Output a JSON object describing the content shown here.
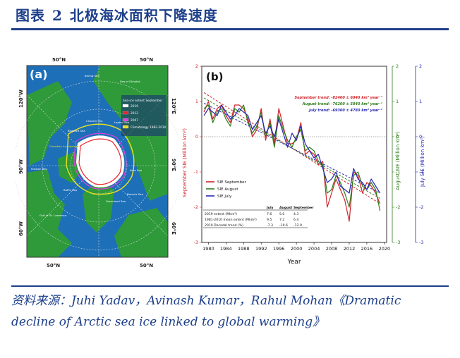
{
  "header": {
    "title_prefix": "图表",
    "title_number": "2",
    "title_text": "北极海冰面积下降速度"
  },
  "source": {
    "label": "资料来源：",
    "text": "Juhi Yadav，Avinash Kumar，Rahul Mohan《Dramatic decline of Arctic sea ice linked to global warming》"
  },
  "map": {
    "panel_label": "(a)",
    "legend_title": "Sea-ice extent September",
    "legend": [
      {
        "label": "2019",
        "color": "#ffffff"
      },
      {
        "label": "2012",
        "color": "#e8202a"
      },
      {
        "label": "2007",
        "color": "#e040e0"
      },
      {
        "label": "Climatology 1982-2010",
        "color": "#e8e020"
      }
    ],
    "lat_labels": [
      "50°N",
      "50°N",
      "50°N",
      "50°N"
    ],
    "lon_labels": [
      "120°W",
      "90°W",
      "60°W",
      "120°E",
      "90°E",
      "60°E"
    ],
    "place_labels": [
      "Bering Sea",
      "Sea of Okhotsk",
      "Chukchi Sea",
      "Beaufort Sea",
      "Canadian Archipelago",
      "Hudson Bay",
      "Baffin Bay",
      "Gulf of St. Lawrence",
      "Greenland Sea",
      "Kara Sea",
      "Barents Sea",
      "Laptev Sea"
    ],
    "colors": {
      "ocean": "#1d6fb8",
      "land": "#2f9a3a",
      "ice": "#ffffff",
      "graticule": "#d8d8d8"
    }
  },
  "chart_data": {
    "type": "line",
    "panel_label": "(b)",
    "xlabel": "Year",
    "ylabel_left": "September SIE (Million km²)",
    "ylabel_right1": "August SIE (Million km²)",
    "ylabel_right2": "July SIE (Million km²)",
    "x_ticks": [
      1980,
      1984,
      1988,
      1992,
      1996,
      2000,
      2004,
      2008,
      2012,
      2016,
      2020
    ],
    "xlim": [
      1978.5,
      2020.5
    ],
    "ylim": [
      -3,
      2
    ],
    "y_ticks": [
      -3,
      -2,
      -1,
      0,
      1,
      2
    ],
    "x": [
      1979,
      1980,
      1981,
      1982,
      1983,
      1984,
      1985,
      1986,
      1987,
      1988,
      1989,
      1990,
      1991,
      1992,
      1993,
      1994,
      1995,
      1996,
      1997,
      1998,
      1999,
      2000,
      2001,
      2002,
      2003,
      2004,
      2005,
      2006,
      2007,
      2008,
      2009,
      2010,
      2011,
      2012,
      2013,
      2014,
      2015,
      2016,
      2017,
      2018,
      2019
    ],
    "series": [
      {
        "name": "SIE September",
        "color": "#d0242a",
        "values": [
          0.7,
          1.0,
          0.5,
          0.8,
          0.9,
          0.6,
          0.4,
          0.9,
          0.9,
          0.8,
          0.5,
          0.0,
          0.2,
          0.8,
          -0.1,
          0.5,
          -0.2,
          0.8,
          0.3,
          -0.2,
          -0.2,
          -0.1,
          0.4,
          -0.5,
          -0.4,
          -0.5,
          -0.8,
          -0.7,
          -2.0,
          -1.6,
          -1.2,
          -1.5,
          -1.8,
          -2.4,
          -1.0,
          -1.1,
          -1.6,
          -1.3,
          -1.4,
          -1.6,
          -1.9
        ]
      },
      {
        "name": "SIE August",
        "color": "#2f7d1a",
        "values": [
          0.8,
          0.9,
          0.4,
          0.7,
          0.8,
          0.5,
          0.3,
          0.8,
          0.7,
          0.9,
          0.4,
          0.1,
          0.3,
          0.7,
          0.0,
          0.4,
          -0.3,
          0.6,
          0.2,
          -0.1,
          -0.3,
          0.0,
          0.2,
          -0.4,
          -0.3,
          -0.4,
          -0.7,
          -0.8,
          -1.6,
          -1.5,
          -1.1,
          -1.3,
          -1.6,
          -2.0,
          -1.1,
          -1.0,
          -1.4,
          -1.5,
          -1.3,
          -1.5,
          -2.1
        ]
      },
      {
        "name": "SIE July",
        "color": "#2828b4",
        "values": [
          0.6,
          0.8,
          0.7,
          0.6,
          0.9,
          0.7,
          0.5,
          0.6,
          0.8,
          0.7,
          0.6,
          0.2,
          0.4,
          0.6,
          0.1,
          0.3,
          0.0,
          0.5,
          0.1,
          -0.3,
          0.1,
          -0.1,
          0.3,
          -0.2,
          -0.4,
          -0.6,
          -0.5,
          -0.9,
          -1.3,
          -1.2,
          -1.0,
          -1.4,
          -1.5,
          -1.6,
          -0.9,
          -1.2,
          -1.3,
          -1.5,
          -1.2,
          -1.4,
          -1.6
        ]
      }
    ],
    "trends": [
      {
        "label": "September trend: -82400 ± 6940 km² year⁻¹",
        "color": "#d0242a",
        "start": 1.25,
        "end": -1.9
      },
      {
        "label": "August trend: -76200 ± 5840 km² year⁻¹",
        "color": "#2f7d1a",
        "start": 1.1,
        "end": -1.75
      },
      {
        "label": "July trend: -69300 ± 4780 km² year⁻¹",
        "color": "#2828b4",
        "start": 0.95,
        "end": -1.6
      }
    ],
    "table": {
      "headers": [
        "",
        "July",
        "August",
        "September"
      ],
      "rows": [
        [
          "2019 extent (Mkm²)",
          "7.6",
          "5.0",
          "4.3"
        ],
        [
          "1981-2010 mean extent (Mkm²)",
          "9.5",
          "7.2",
          "6.4"
        ],
        [
          "2019 Decadal trend (%)",
          "-7.3",
          "-10.6",
          "-12.9"
        ]
      ]
    }
  }
}
